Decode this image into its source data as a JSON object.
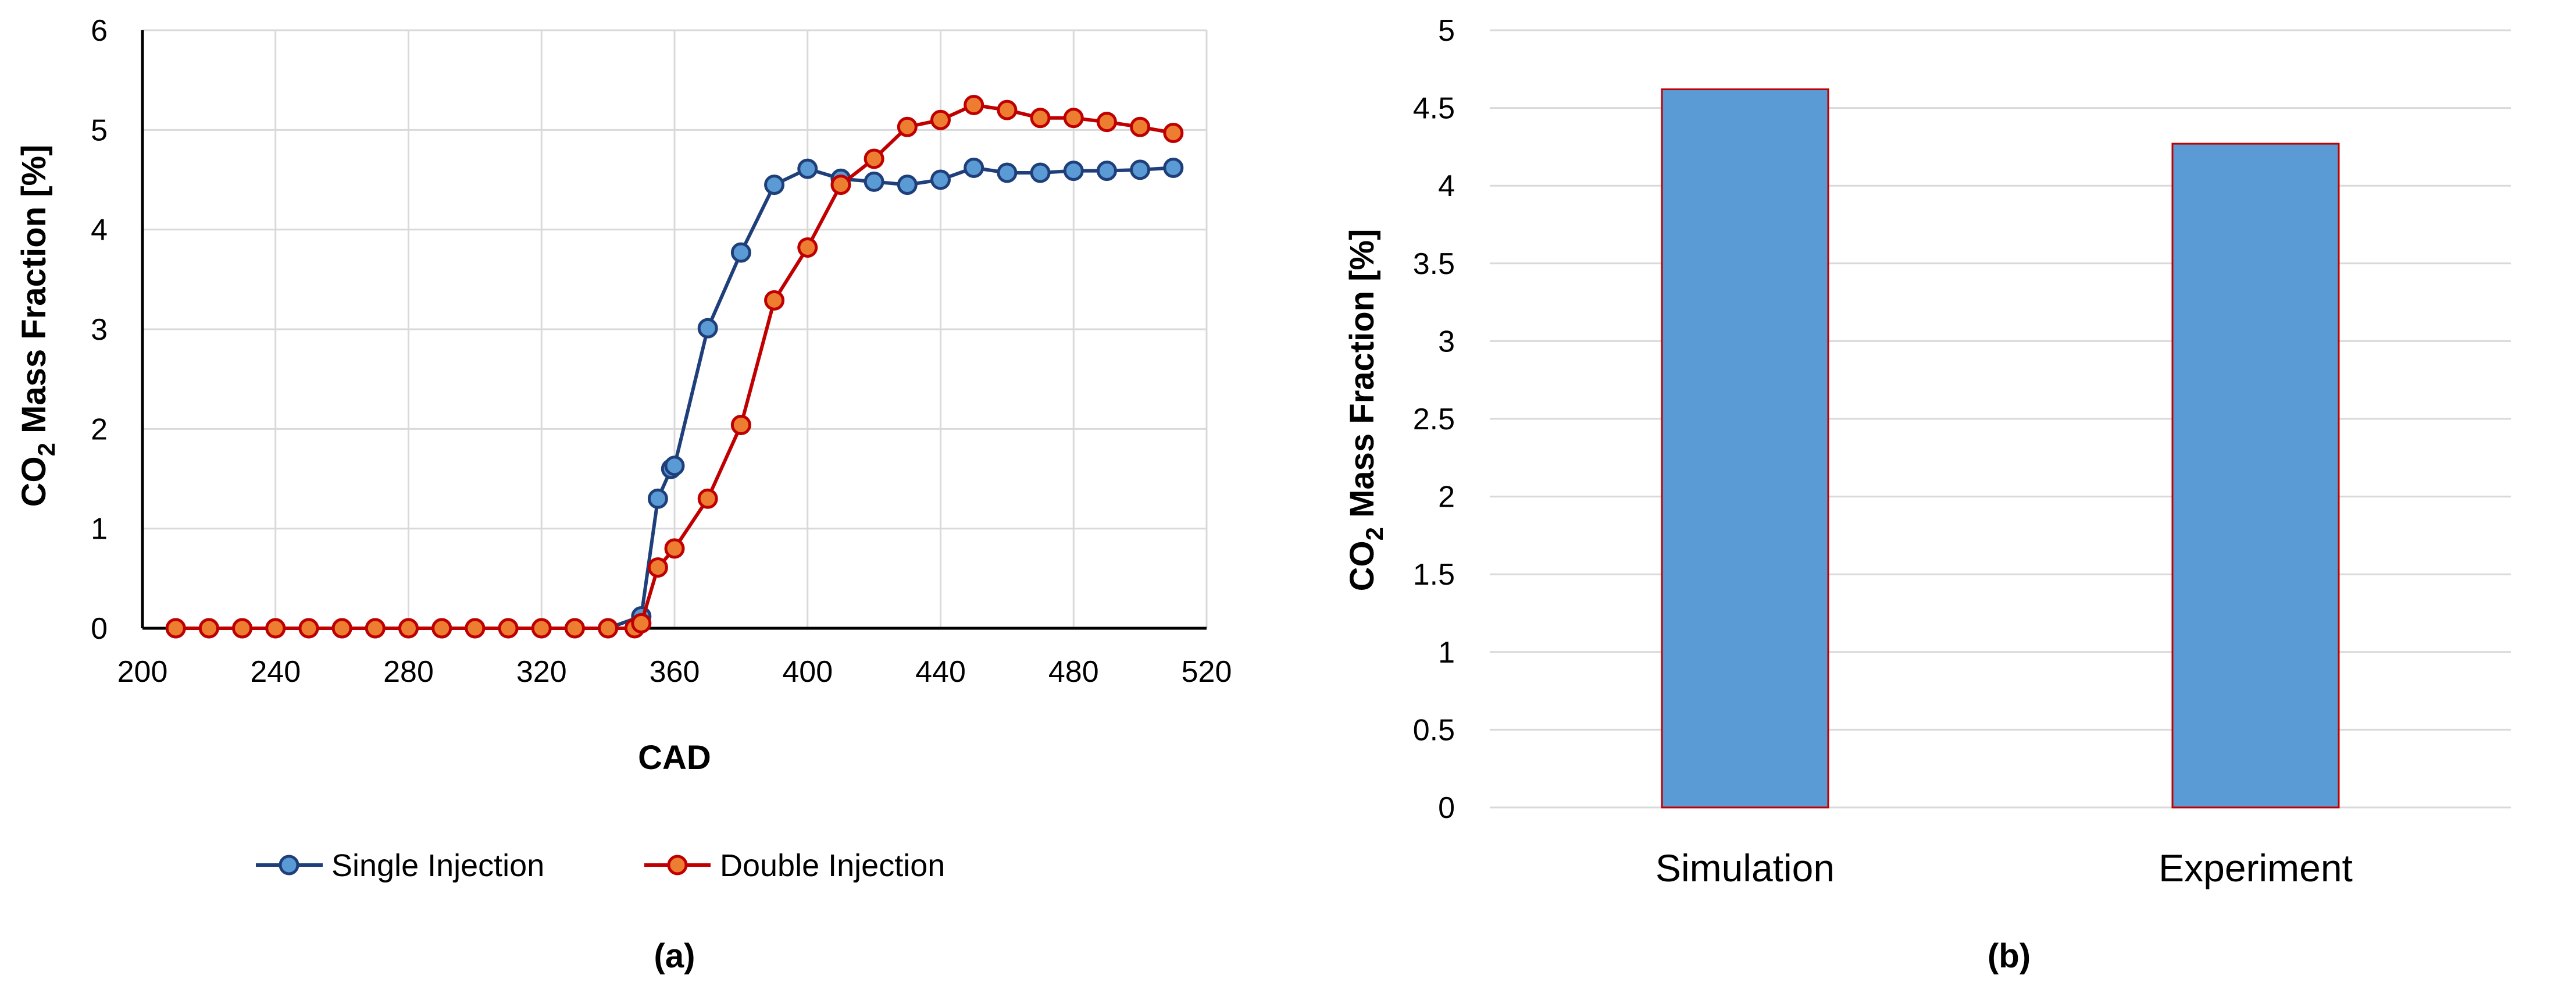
{
  "chart_data": [
    {
      "type": "line",
      "panel": "(a)",
      "xlabel": "CAD",
      "ylabel": {
        "prefix": "CO",
        "sub": "2",
        "suffix": " Mass Fraction  [%]"
      },
      "xlim": [
        200,
        520
      ],
      "ylim": [
        0,
        6
      ],
      "xticks": [
        200,
        240,
        280,
        320,
        360,
        400,
        440,
        480,
        520
      ],
      "yticks": [
        0,
        1,
        2,
        3,
        4,
        5,
        6
      ],
      "grid": true,
      "legend_position": "bottom",
      "series": [
        {
          "name": "Single Injection",
          "color": "#1F3F7A",
          "fill": "#5B9BD5",
          "x": [
            210,
            220,
            230,
            240,
            250,
            260,
            270,
            280,
            290,
            300,
            310,
            320,
            330,
            340,
            350,
            355,
            359,
            360,
            370,
            380,
            390,
            400,
            410,
            420,
            430,
            440,
            450,
            460,
            470,
            480,
            490,
            500,
            510
          ],
          "y": [
            0,
            0,
            0,
            0,
            0,
            0,
            0,
            0,
            0,
            0,
            0,
            0,
            0,
            0,
            0.12,
            1.3,
            1.6,
            1.63,
            3.01,
            3.77,
            4.45,
            4.61,
            4.51,
            4.48,
            4.45,
            4.5,
            4.62,
            4.57,
            4.57,
            4.59,
            4.59,
            4.6,
            4.62
          ]
        },
        {
          "name": "Double Injection",
          "color": "#C00000",
          "fill": "#ED7D31",
          "x": [
            210,
            220,
            230,
            240,
            250,
            260,
            270,
            280,
            290,
            300,
            310,
            320,
            330,
            340,
            348,
            350,
            355,
            360,
            370,
            380,
            390,
            400,
            410,
            420,
            430,
            440,
            450,
            460,
            470,
            480,
            490,
            500,
            510
          ],
          "y": [
            0,
            0,
            0,
            0,
            0,
            0,
            0,
            0,
            0,
            0,
            0,
            0,
            0,
            0,
            0,
            0.05,
            0.61,
            0.8,
            1.3,
            2.04,
            3.29,
            3.82,
            4.45,
            4.71,
            5.03,
            5.1,
            5.25,
            5.2,
            5.12,
            5.12,
            5.08,
            5.03,
            4.97
          ]
        }
      ]
    },
    {
      "type": "bar",
      "panel": "(b)",
      "xlabel": "",
      "ylabel": {
        "prefix": "CO",
        "sub": "2",
        "suffix": " Mass Fraction  [%]"
      },
      "ylim": [
        0,
        5
      ],
      "yticks": [
        "0",
        "0.5",
        "1",
        "1.5",
        "2",
        "2.5",
        "3",
        "3.5",
        "4",
        "4.5",
        "5"
      ],
      "grid": true,
      "bar_color": "#5B9BD5",
      "bar_edge_color": "#C00000",
      "categories": [
        "Simulation",
        "Experiment"
      ],
      "values": [
        4.62,
        4.27
      ]
    }
  ]
}
